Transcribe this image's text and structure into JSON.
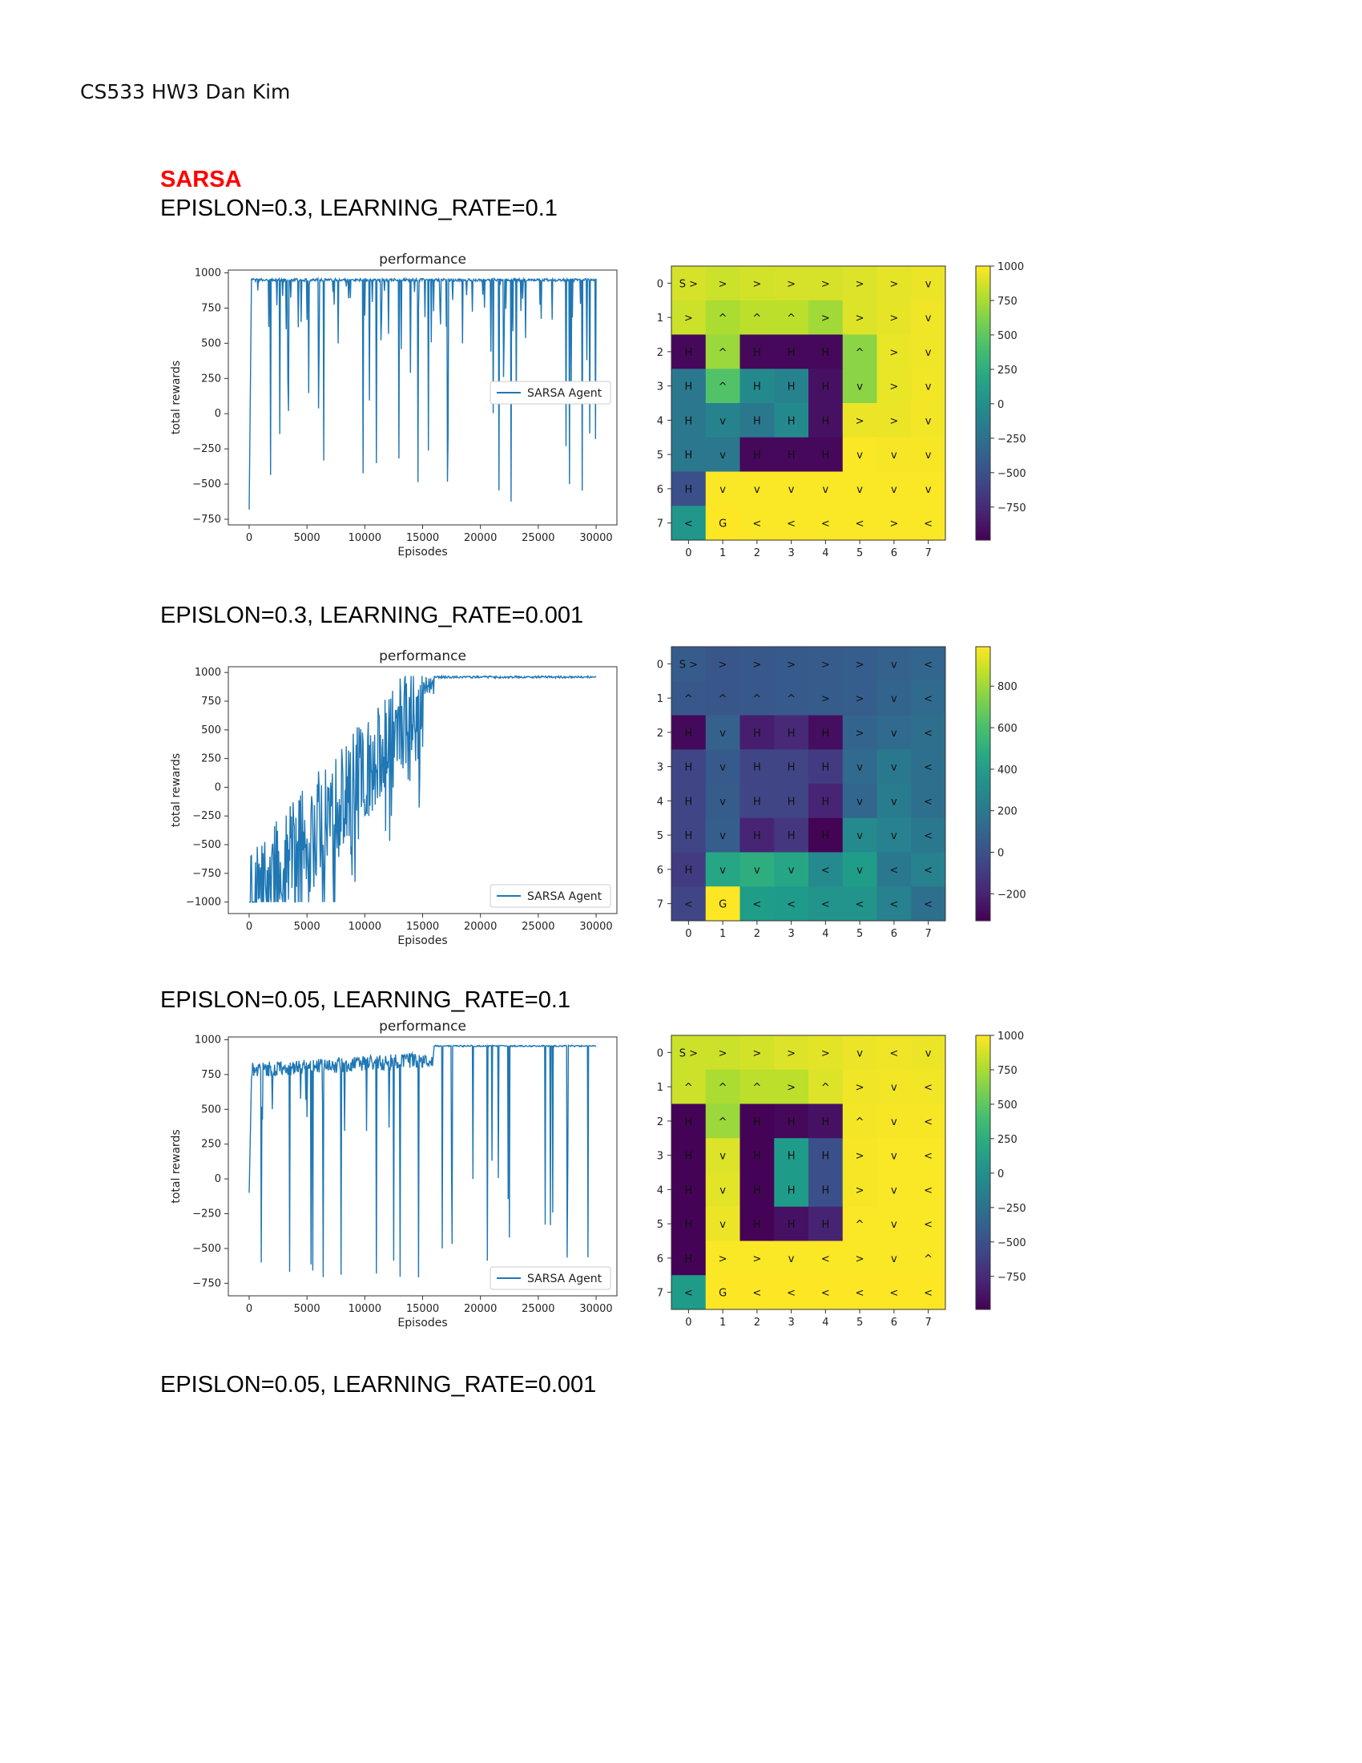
{
  "header": {
    "text": "CS533 HW3 Dan Kim"
  },
  "section": {
    "title": "SARSA"
  },
  "experiments": [
    {
      "label": "EPISLON=0.3, LEARNING_RATE=0.1",
      "line_chart": {
        "type": "line",
        "title": "performance",
        "xlabel": "Episodes",
        "ylabel": "total rewards",
        "xlim": [
          -1800,
          31800
        ],
        "ylim": [
          -790,
          1020
        ],
        "xticks": [
          0,
          5000,
          10000,
          15000,
          20000,
          25000,
          30000
        ],
        "yticks": [
          -750,
          -500,
          -250,
          0,
          250,
          500,
          750,
          1000
        ],
        "legend": "SARSA Agent",
        "legend_position": "center-right",
        "profile": "spiky-high"
      },
      "heatmap": {
        "type": "heatmap",
        "xticks": [
          "0",
          "1",
          "2",
          "3",
          "4",
          "5",
          "6",
          "7"
        ],
        "yticks": [
          "0",
          "1",
          "2",
          "3",
          "4",
          "5",
          "6",
          "7"
        ],
        "vmin": -990,
        "vmax": 1000,
        "colorbar_ticks": [
          1000,
          750,
          500,
          250,
          0,
          -250,
          -500,
          -750
        ],
        "values": [
          [
            880,
            850,
            870,
            880,
            880,
            900,
            930,
            950
          ],
          [
            850,
            750,
            800,
            800,
            720,
            900,
            930,
            960
          ],
          [
            -950,
            700,
            -950,
            -950,
            -950,
            650,
            940,
            960
          ],
          [
            -200,
            450,
            -50,
            -100,
            -900,
            650,
            940,
            970
          ],
          [
            -200,
            -100,
            -200,
            -50,
            -900,
            950,
            950,
            970
          ],
          [
            -200,
            -200,
            -950,
            -950,
            -950,
            990,
            980,
            980
          ],
          [
            -500,
            990,
            990,
            990,
            990,
            990,
            990,
            990
          ],
          [
            50,
            1000,
            990,
            990,
            990,
            990,
            990,
            990
          ]
        ],
        "labels": [
          [
            "S >",
            ">",
            ">",
            ">",
            ">",
            ">",
            ">",
            "v"
          ],
          [
            ">",
            "^",
            "^",
            "^",
            ">",
            ">",
            ">",
            "v"
          ],
          [
            "H",
            "^",
            "H",
            "H",
            "H",
            "^",
            ">",
            "v"
          ],
          [
            "H",
            "^",
            "H",
            "H",
            "H",
            "v",
            ">",
            "v"
          ],
          [
            "H",
            "v",
            "H",
            "H",
            "H",
            ">",
            ">",
            "v"
          ],
          [
            "H",
            "v",
            "H",
            "H",
            "H",
            "v",
            "v",
            "v"
          ],
          [
            "H",
            "v",
            "v",
            "v",
            "v",
            "v",
            "v",
            "v"
          ],
          [
            "<",
            "G",
            "<",
            "<",
            "<",
            "<",
            ">",
            "<"
          ]
        ]
      }
    },
    {
      "label": "EPISLON=0.3, LEARNING_RATE=0.001",
      "line_chart": {
        "type": "line",
        "title": "performance",
        "xlabel": "Episodes",
        "ylabel": "total rewards",
        "xlim": [
          -1800,
          31800
        ],
        "ylim": [
          -1100,
          1050
        ],
        "xticks": [
          0,
          5000,
          10000,
          15000,
          20000,
          25000,
          30000
        ],
        "yticks": [
          -1000,
          -750,
          -500,
          -250,
          0,
          250,
          500,
          750,
          1000
        ],
        "legend": "SARSA Agent",
        "legend_position": "lower-right",
        "profile": "rising"
      },
      "heatmap": {
        "type": "heatmap",
        "xticks": [
          "0",
          "1",
          "2",
          "3",
          "4",
          "5",
          "6",
          "7"
        ],
        "yticks": [
          "0",
          "1",
          "2",
          "3",
          "4",
          "5",
          "6",
          "7"
        ],
        "vmin": -330,
        "vmax": 990,
        "colorbar_ticks": [
          800,
          600,
          400,
          200,
          0,
          -200
        ],
        "values": [
          [
            50,
            20,
            30,
            40,
            50,
            60,
            80,
            100
          ],
          [
            30,
            20,
            30,
            40,
            50,
            60,
            90,
            120
          ],
          [
            -300,
            80,
            -220,
            -180,
            -280,
            90,
            120,
            150
          ],
          [
            -60,
            40,
            -60,
            -60,
            -100,
            120,
            200,
            150
          ],
          [
            -60,
            50,
            -60,
            -60,
            -200,
            100,
            220,
            150
          ],
          [
            -60,
            60,
            -200,
            -120,
            -320,
            300,
            250,
            200
          ],
          [
            -100,
            450,
            500,
            450,
            300,
            400,
            200,
            250
          ],
          [
            -60,
            990,
            400,
            380,
            350,
            350,
            250,
            150
          ]
        ],
        "labels": [
          [
            "S >",
            ">",
            ">",
            ">",
            ">",
            ">",
            "v",
            "<"
          ],
          [
            "^",
            "^",
            "^",
            "^",
            ">",
            ">",
            "v",
            "<"
          ],
          [
            "H",
            "v",
            "H",
            "H",
            "H",
            ">",
            "v",
            "<"
          ],
          [
            "H",
            "v",
            "H",
            "H",
            "H",
            "v",
            "v",
            "<"
          ],
          [
            "H",
            "v",
            "H",
            "H",
            "H",
            "v",
            "v",
            "<"
          ],
          [
            "H",
            "v",
            "H",
            "H",
            "H",
            "v",
            "v",
            "<"
          ],
          [
            "H",
            "v",
            "v",
            "v",
            "<",
            "v",
            "<",
            "<"
          ],
          [
            "<",
            "G",
            "<",
            "<",
            "<",
            "<",
            "<",
            "<"
          ]
        ]
      }
    },
    {
      "label": "EPISLON=0.05, LEARNING_RATE=0.1",
      "line_chart": {
        "type": "line",
        "title": "performance",
        "xlabel": "Episodes",
        "ylabel": "total rewards",
        "xlim": [
          -1800,
          31800
        ],
        "ylim": [
          -840,
          1020
        ],
        "xticks": [
          0,
          5000,
          10000,
          15000,
          20000,
          25000,
          30000
        ],
        "yticks": [
          -750,
          -500,
          -250,
          0,
          250,
          500,
          750,
          1000
        ],
        "legend": "SARSA Agent",
        "legend_position": "lower-right",
        "profile": "plateau"
      },
      "heatmap": {
        "type": "heatmap",
        "xticks": [
          "0",
          "1",
          "2",
          "3",
          "4",
          "5",
          "6",
          "7"
        ],
        "yticks": [
          "0",
          "1",
          "2",
          "3",
          "4",
          "5",
          "6",
          "7"
        ],
        "vmin": -990,
        "vmax": 1000,
        "colorbar_ticks": [
          1000,
          750,
          500,
          250,
          0,
          -250,
          -500,
          -750
        ],
        "values": [
          [
            850,
            850,
            870,
            900,
            920,
            950,
            960,
            950
          ],
          [
            850,
            750,
            800,
            800,
            900,
            960,
            970,
            970
          ],
          [
            -980,
            700,
            -980,
            -950,
            -900,
            970,
            980,
            980
          ],
          [
            -980,
            900,
            -980,
            100,
            -500,
            980,
            990,
            990
          ],
          [
            -980,
            920,
            -980,
            100,
            -500,
            980,
            990,
            990
          ],
          [
            -980,
            950,
            -980,
            -900,
            -800,
            990,
            990,
            990
          ],
          [
            -980,
            990,
            990,
            990,
            990,
            990,
            990,
            990
          ],
          [
            100,
            1000,
            1000,
            1000,
            1000,
            1000,
            1000,
            1000
          ]
        ],
        "labels": [
          [
            "S >",
            ">",
            ">",
            ">",
            ">",
            "v",
            "<",
            "v"
          ],
          [
            "^",
            "^",
            "^",
            ">",
            "^",
            ">",
            "v",
            "<"
          ],
          [
            "H",
            "^",
            "H",
            "H",
            "H",
            "^",
            "v",
            "<"
          ],
          [
            "H",
            "v",
            "H",
            "H",
            "H",
            ">",
            "v",
            "<"
          ],
          [
            "H",
            "v",
            "H",
            "H",
            "H",
            ">",
            "v",
            "<"
          ],
          [
            "H",
            "v",
            "H",
            "H",
            "H",
            "^",
            "v",
            "<"
          ],
          [
            "H",
            ">",
            ">",
            "v",
            "<",
            ">",
            "v",
            "^"
          ],
          [
            "<",
            "G",
            "<",
            "<",
            "<",
            "<",
            "<",
            "<"
          ]
        ]
      }
    },
    {
      "label": "EPISLON=0.05, LEARNING_RATE=0.001"
    }
  ]
}
